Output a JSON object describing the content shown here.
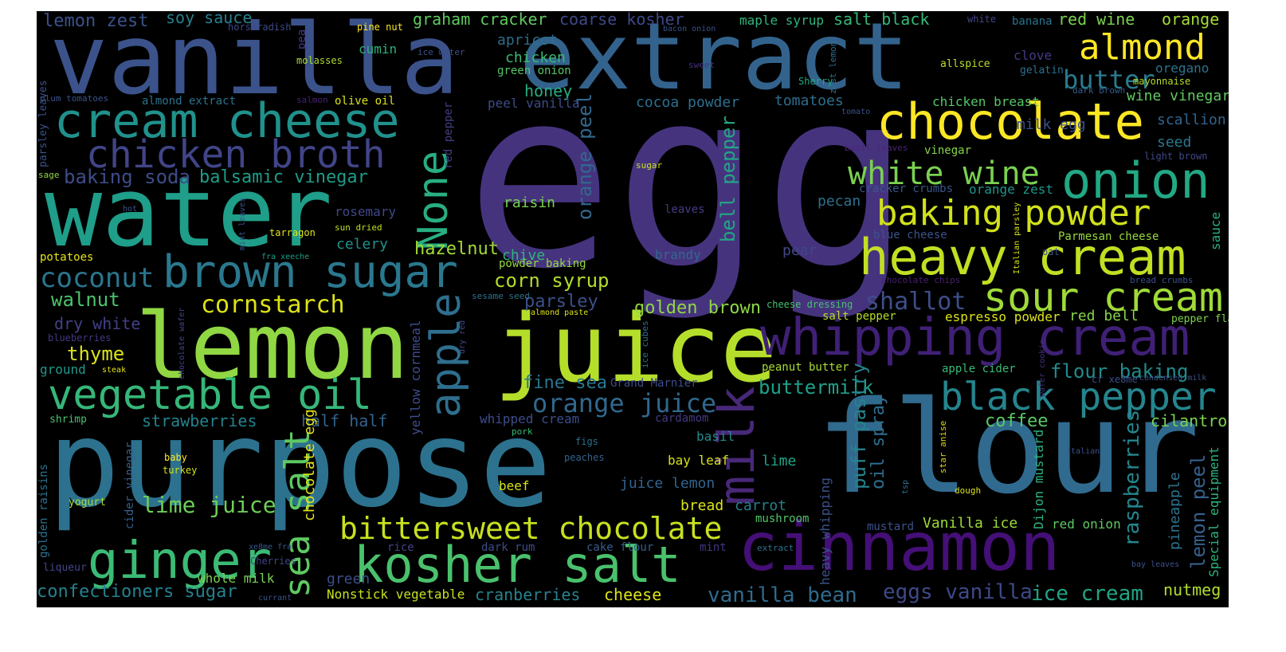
{
  "words": [
    {
      "text": "egg",
      "color": "#46337e"
    },
    {
      "text": "vanilla",
      "color": "#3b528b"
    },
    {
      "text": "extract",
      "color": "#33638d"
    },
    {
      "text": "purpose",
      "color": "#2c728e"
    },
    {
      "text": "flour",
      "color": "#306a8e"
    },
    {
      "text": "water",
      "color": "#1f9e89"
    },
    {
      "text": "lemon",
      "color": "#90d743"
    },
    {
      "text": "juice",
      "color": "#b5de2b"
    },
    {
      "text": "cinnamon",
      "color": "#440f76"
    },
    {
      "text": "whipping cream",
      "color": "#3f2076"
    },
    {
      "text": "cream cheese",
      "color": "#21918c"
    },
    {
      "text": "chicken broth",
      "color": "#414487"
    },
    {
      "text": "brown sugar",
      "color": "#2a788e"
    },
    {
      "text": "vegetable oil",
      "color": "#35b779"
    },
    {
      "text": "kosher salt",
      "color": "#4ac16d"
    },
    {
      "text": "ginger",
      "color": "#3bbb75"
    },
    {
      "text": "bittersweet chocolate",
      "color": "#c8e020"
    },
    {
      "text": "heavy cream",
      "color": "#c2df23"
    },
    {
      "text": "chocolate",
      "color": "#fde725"
    },
    {
      "text": "almond",
      "color": "#fde725"
    },
    {
      "text": "onion",
      "color": "#22a884"
    },
    {
      "text": "sour cream",
      "color": "#a0da39"
    },
    {
      "text": "black pepper",
      "color": "#25858e"
    },
    {
      "text": "baking powder",
      "color": "#d0e11c"
    },
    {
      "text": "white wine",
      "color": "#7ad151"
    },
    {
      "text": "apple",
      "color": "#2e6e8e"
    },
    {
      "text": "None",
      "color": "#28ae80"
    },
    {
      "text": "milk",
      "color": "#482878"
    },
    {
      "text": "orange juice",
      "color": "#31688e"
    },
    {
      "text": "sea salt",
      "color": "#5ec962"
    },
    {
      "text": "lime juice",
      "color": "#6ece58"
    },
    {
      "text": "coconut",
      "color": "#2a768e"
    },
    {
      "text": "cornstarch",
      "color": "#dde318"
    },
    {
      "text": "butter",
      "color": "#297b8e"
    },
    {
      "text": "vanilla bean",
      "color": "#2f6b8e"
    },
    {
      "text": "eggs vanilla",
      "color": "#3e4989"
    },
    {
      "text": "ice cream",
      "color": "#20a486"
    },
    {
      "text": "confectioners sugar",
      "color": "#26818e"
    },
    {
      "text": "flour baking",
      "color": "#228b8d"
    },
    {
      "text": "lemon peel",
      "color": "#35608d"
    },
    {
      "text": "raspberries",
      "color": "#24868e"
    },
    {
      "text": "shallot",
      "color": "#3d4e8a"
    },
    {
      "text": "buttermilk",
      "color": "#1fa088"
    },
    {
      "text": "baking soda",
      "color": "#3e4c8a"
    },
    {
      "text": "balsamic vinegar",
      "color": "#1e9c89"
    },
    {
      "text": "orange peel",
      "color": "#31688e"
    },
    {
      "text": "bell pepper",
      "color": "#22a785"
    },
    {
      "text": "golden brown",
      "color": "#8fd744"
    },
    {
      "text": "corn syrup",
      "color": "#b2dd2d"
    },
    {
      "text": "walnut",
      "color": "#4cc26c"
    },
    {
      "text": "thyme",
      "color": "#dae319"
    },
    {
      "text": "dry white",
      "color": "#424086"
    },
    {
      "text": "strawberries",
      "color": "#26828e"
    },
    {
      "text": "half half",
      "color": "#33628d"
    },
    {
      "text": "fine sea",
      "color": "#2a768e"
    },
    {
      "text": "hazelnut",
      "color": "#a2da37"
    },
    {
      "text": "parsley",
      "color": "#3c4f8a"
    },
    {
      "text": "coffee",
      "color": "#5ac864"
    },
    {
      "text": "puff pastry",
      "color": "#25848e"
    },
    {
      "text": "oil spray",
      "color": "#2e6d8e"
    },
    {
      "text": "cilantro",
      "color": "#7cd250"
    },
    {
      "text": "nutmeg",
      "color": "#b0dd2f"
    },
    {
      "text": "cranberries",
      "color": "#26828e"
    },
    {
      "text": "cheese",
      "color": "#dde318"
    },
    {
      "text": "lemon zest",
      "color": "#3b528b"
    },
    {
      "text": "soy sauce",
      "color": "#27808e"
    },
    {
      "text": "graham cracker",
      "color": "#60ca60"
    },
    {
      "text": "coarse kosher",
      "color": "#3e4989"
    },
    {
      "text": "maple syrup",
      "color": "#2fb47c"
    },
    {
      "text": "salt black",
      "color": "#37b878"
    },
    {
      "text": "red wine",
      "color": "#7ad151"
    },
    {
      "text": "orange",
      "color": "#a5db36"
    },
    {
      "text": "banana",
      "color": "#2b748e"
    },
    {
      "text": "white",
      "color": "#404688"
    },
    {
      "text": "apricot",
      "color": "#2e6e8e"
    },
    {
      "text": "chicken",
      "color": "#3aba76"
    },
    {
      "text": "cumin",
      "color": "#2db27d"
    },
    {
      "text": "honey",
      "color": "#27ad81"
    },
    {
      "text": "clove",
      "color": "#443983"
    },
    {
      "text": "allspice",
      "color": "#b8de29"
    },
    {
      "text": "gelatin",
      "color": "#2d708e"
    },
    {
      "text": "oregano",
      "color": "#2c738e"
    },
    {
      "text": "mayonnaise",
      "color": "#b5de2b"
    },
    {
      "text": "wine vinegar",
      "color": "#60ca60"
    },
    {
      "text": "scallion",
      "color": "#33638d"
    },
    {
      "text": "chicken breast",
      "color": "#56c667"
    },
    {
      "text": "cocoa powder",
      "color": "#2e6f8e"
    },
    {
      "text": "tomatoes",
      "color": "#2e6e8e"
    },
    {
      "text": "peel vanilla",
      "color": "#3e4a89"
    },
    {
      "text": "almond extract",
      "color": "#2c728e"
    },
    {
      "text": "olive oil",
      "color": "#dde318"
    },
    {
      "text": "milk egg",
      "color": "#3b518b"
    },
    {
      "text": "seed",
      "color": "#2a788e"
    },
    {
      "text": "vinegar",
      "color": "#84d44b"
    },
    {
      "text": "cracker crumbs",
      "color": "#38588c"
    },
    {
      "text": "orange zest",
      "color": "#1f958b"
    },
    {
      "text": "raisin",
      "color": "#7ad151"
    },
    {
      "text": "pecan",
      "color": "#2d708e"
    },
    {
      "text": "rosemary",
      "color": "#3f4889"
    },
    {
      "text": "celery",
      "color": "#21918c"
    },
    {
      "text": "chive",
      "color": "#2fb47c"
    },
    {
      "text": "sauce",
      "color": "#29af7f"
    },
    {
      "text": "Parmesan cheese",
      "color": "#98d83e"
    },
    {
      "text": "blue cheese",
      "color": "#3a538b"
    },
    {
      "text": "leaves",
      "color": "#443a83"
    },
    {
      "text": "brandy",
      "color": "#31688e"
    },
    {
      "text": "pear",
      "color": "#3f4788"
    },
    {
      "text": "powder baking",
      "color": "#95d840"
    },
    {
      "text": "salt pepper",
      "color": "#b5de2b"
    },
    {
      "text": "espresso powder",
      "color": "#dde318"
    },
    {
      "text": "red bell",
      "color": "#86d549"
    },
    {
      "text": "pepper flake",
      "color": "#7fd34e"
    },
    {
      "text": "apple cider",
      "color": "#38b977"
    },
    {
      "text": "peanut butter",
      "color": "#a8db34"
    },
    {
      "text": "basil",
      "color": "#238a8d"
    },
    {
      "text": "bay leaf",
      "color": "#d8e219"
    },
    {
      "text": "lime",
      "color": "#20a486"
    },
    {
      "text": "juice lemon",
      "color": "#33638d"
    },
    {
      "text": "bread",
      "color": "#dae319"
    },
    {
      "text": "carrot",
      "color": "#27808e"
    },
    {
      "text": "mushroom",
      "color": "#52c569"
    },
    {
      "text": "cake flour",
      "color": "#365d8d"
    },
    {
      "text": "dark rum",
      "color": "#3e4c8a"
    },
    {
      "text": "mint",
      "color": "#453781"
    },
    {
      "text": "Vanilla ice",
      "color": "#9fda3a"
    },
    {
      "text": "mustard",
      "color": "#3b528b"
    },
    {
      "text": "red onion",
      "color": "#5ec962"
    },
    {
      "text": "Dijon mustard",
      "color": "#2db27d"
    },
    {
      "text": "heavy whipping",
      "color": "#3b528b"
    },
    {
      "text": "pineapple",
      "color": "#2c738e"
    },
    {
      "text": "Special equipment",
      "color": "#2eb37c"
    },
    {
      "text": "beef",
      "color": "#d8e219"
    },
    {
      "text": "rice",
      "color": "#414287"
    },
    {
      "text": "green",
      "color": "#3c4f8a"
    },
    {
      "text": "whole milk",
      "color": "#7ad151"
    },
    {
      "text": "Nonstick vegetable",
      "color": "#c8e020"
    },
    {
      "text": "cider vinegar",
      "color": "#35608d"
    },
    {
      "text": "chocolate egg",
      "color": "#e5e419"
    },
    {
      "text": "yellow cornmeal",
      "color": "#3e4c8a"
    },
    {
      "text": "red pepper",
      "color": "#423f85"
    },
    {
      "text": "whipped cream",
      "color": "#3d4d8a"
    },
    {
      "text": "Grand Marnier",
      "color": "#3e4c8a"
    },
    {
      "text": "cardamom",
      "color": "#443983"
    },
    {
      "text": "potatoes",
      "color": "#e5e419"
    },
    {
      "text": "ground",
      "color": "#1f998a"
    },
    {
      "text": "golden raisins",
      "color": "#2c718e"
    },
    {
      "text": "yogurt",
      "color": "#a8db34"
    },
    {
      "text": "shrimp",
      "color": "#4ac16d"
    },
    {
      "text": "horseradish",
      "color": "#3e4989"
    },
    {
      "text": "pea",
      "color": "#453882"
    },
    {
      "text": "pine nut",
      "color": "#fde725"
    },
    {
      "text": "molasses",
      "color": "#addc30"
    },
    {
      "text": "ice water",
      "color": "#3c4f8a"
    },
    {
      "text": "peanut",
      "color": "#39568c"
    },
    {
      "text": "green onion",
      "color": "#56c667"
    },
    {
      "text": "bacon onion",
      "color": "#3b518b"
    },
    {
      "text": "sweet",
      "color": "#46327e"
    },
    {
      "text": "zest lemon",
      "color": "#2e6d8e"
    },
    {
      "text": "Sherry",
      "color": "#22a884"
    },
    {
      "text": "tomato",
      "color": "#3c508b"
    },
    {
      "text": "dark brown",
      "color": "#365c8d"
    },
    {
      "text": "light brown",
      "color": "#3f4889"
    },
    {
      "text": "basil leaves",
      "color": "#482576"
    },
    {
      "text": "sugar",
      "color": "#cae11f"
    },
    {
      "text": "Italian parsley",
      "color": "#d5e21a"
    },
    {
      "text": "oat",
      "color": "#3a548c"
    },
    {
      "text": "chocolate chips",
      "color": "#481f70"
    },
    {
      "text": "bread crumbs",
      "color": "#3c4f8a"
    },
    {
      "text": "sesame seed",
      "color": "#2c728e"
    },
    {
      "text": "almond paste",
      "color": "#dde318"
    },
    {
      "text": "cheese dressing",
      "color": "#48c16e"
    },
    {
      "text": "cr xe8me",
      "color": "#3c4f8a"
    },
    {
      "text": "condensed milk",
      "color": "#3b528b"
    },
    {
      "text": "wafer cookie",
      "color": "#46307e"
    },
    {
      "text": "ice cubes",
      "color": "#2e6f8e"
    },
    {
      "text": "dry red",
      "color": "#3e4c8a"
    },
    {
      "text": "italian",
      "color": "#3b518b"
    },
    {
      "text": "star anise",
      "color": "#ddd815"
    },
    {
      "text": "dough",
      "color": "#dde318"
    },
    {
      "text": "tsp",
      "color": "#2c738e"
    },
    {
      "text": "figs",
      "color": "#2d708e"
    },
    {
      "text": "peaches",
      "color": "#33638d"
    },
    {
      "text": "pork",
      "color": "#3aba76"
    },
    {
      "text": "baby",
      "color": "#fde725"
    },
    {
      "text": "turkey",
      "color": "#d5e21a"
    },
    {
      "text": "Cherries",
      "color": "#404588"
    },
    {
      "text": "xe8me fra",
      "color": "#38588c"
    },
    {
      "text": "currant",
      "color": "#3b528b"
    },
    {
      "text": "liqueur",
      "color": "#3f4788"
    },
    {
      "text": "extract",
      "color": "#2c728e"
    },
    {
      "text": "bay leaves",
      "color": "#3b528b"
    },
    {
      "text": "steak",
      "color": "#e5e419"
    },
    {
      "text": "chocolate wafer",
      "color": "#404588"
    },
    {
      "text": "blueberries",
      "color": "#453882"
    },
    {
      "text": "mint leaves",
      "color": "#3b528b"
    },
    {
      "text": "hot",
      "color": "#3b528b"
    },
    {
      "text": "sun dried",
      "color": "#c0df25"
    },
    {
      "text": "tarragon",
      "color": "#e5e419"
    },
    {
      "text": "fra xeeche",
      "color": "#1f9e89"
    },
    {
      "text": "sage",
      "color": "#8ed645"
    },
    {
      "text": "parsley leaves",
      "color": "#3b528b"
    },
    {
      "text": "plum tomatoes",
      "color": "#3b528b"
    },
    {
      "text": "salmon",
      "color": "#482173"
    }
  ]
}
